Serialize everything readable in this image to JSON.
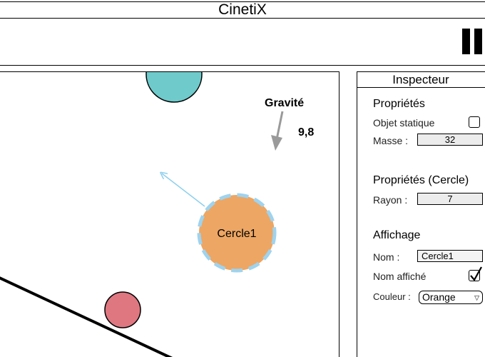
{
  "app": {
    "title": "CinetiX"
  },
  "toolbar": {
    "pause_icon": "pause-icon"
  },
  "scene": {
    "gravity_label": "Gravité",
    "gravity_value": "9,8",
    "selected_circle_label": "Cercle1",
    "colors": {
      "teal_circle": "#6ecacb",
      "orange_circle": "#eda663",
      "red_circle": "#df7781",
      "selection_dash": "#9fd3ee",
      "velocity_arrow": "#8ccfee",
      "gravity_arrow": "#9a9a9a"
    }
  },
  "inspector": {
    "title": "Inspecteur",
    "properties": {
      "heading": "Propriétés",
      "static_label": "Objet statique",
      "static_checked": false,
      "mass_label": "Masse :",
      "mass_value": "32"
    },
    "circle_properties": {
      "heading": "Propriétés (Cercle)",
      "radius_label": "Rayon :",
      "radius_value": "7"
    },
    "display": {
      "heading": "Affichage",
      "name_label": "Nom :",
      "name_value": "Cercle1",
      "name_shown_label": "Nom affiché",
      "name_shown_checked": true,
      "color_label": "Couleur :",
      "color_value": "Orange"
    }
  }
}
